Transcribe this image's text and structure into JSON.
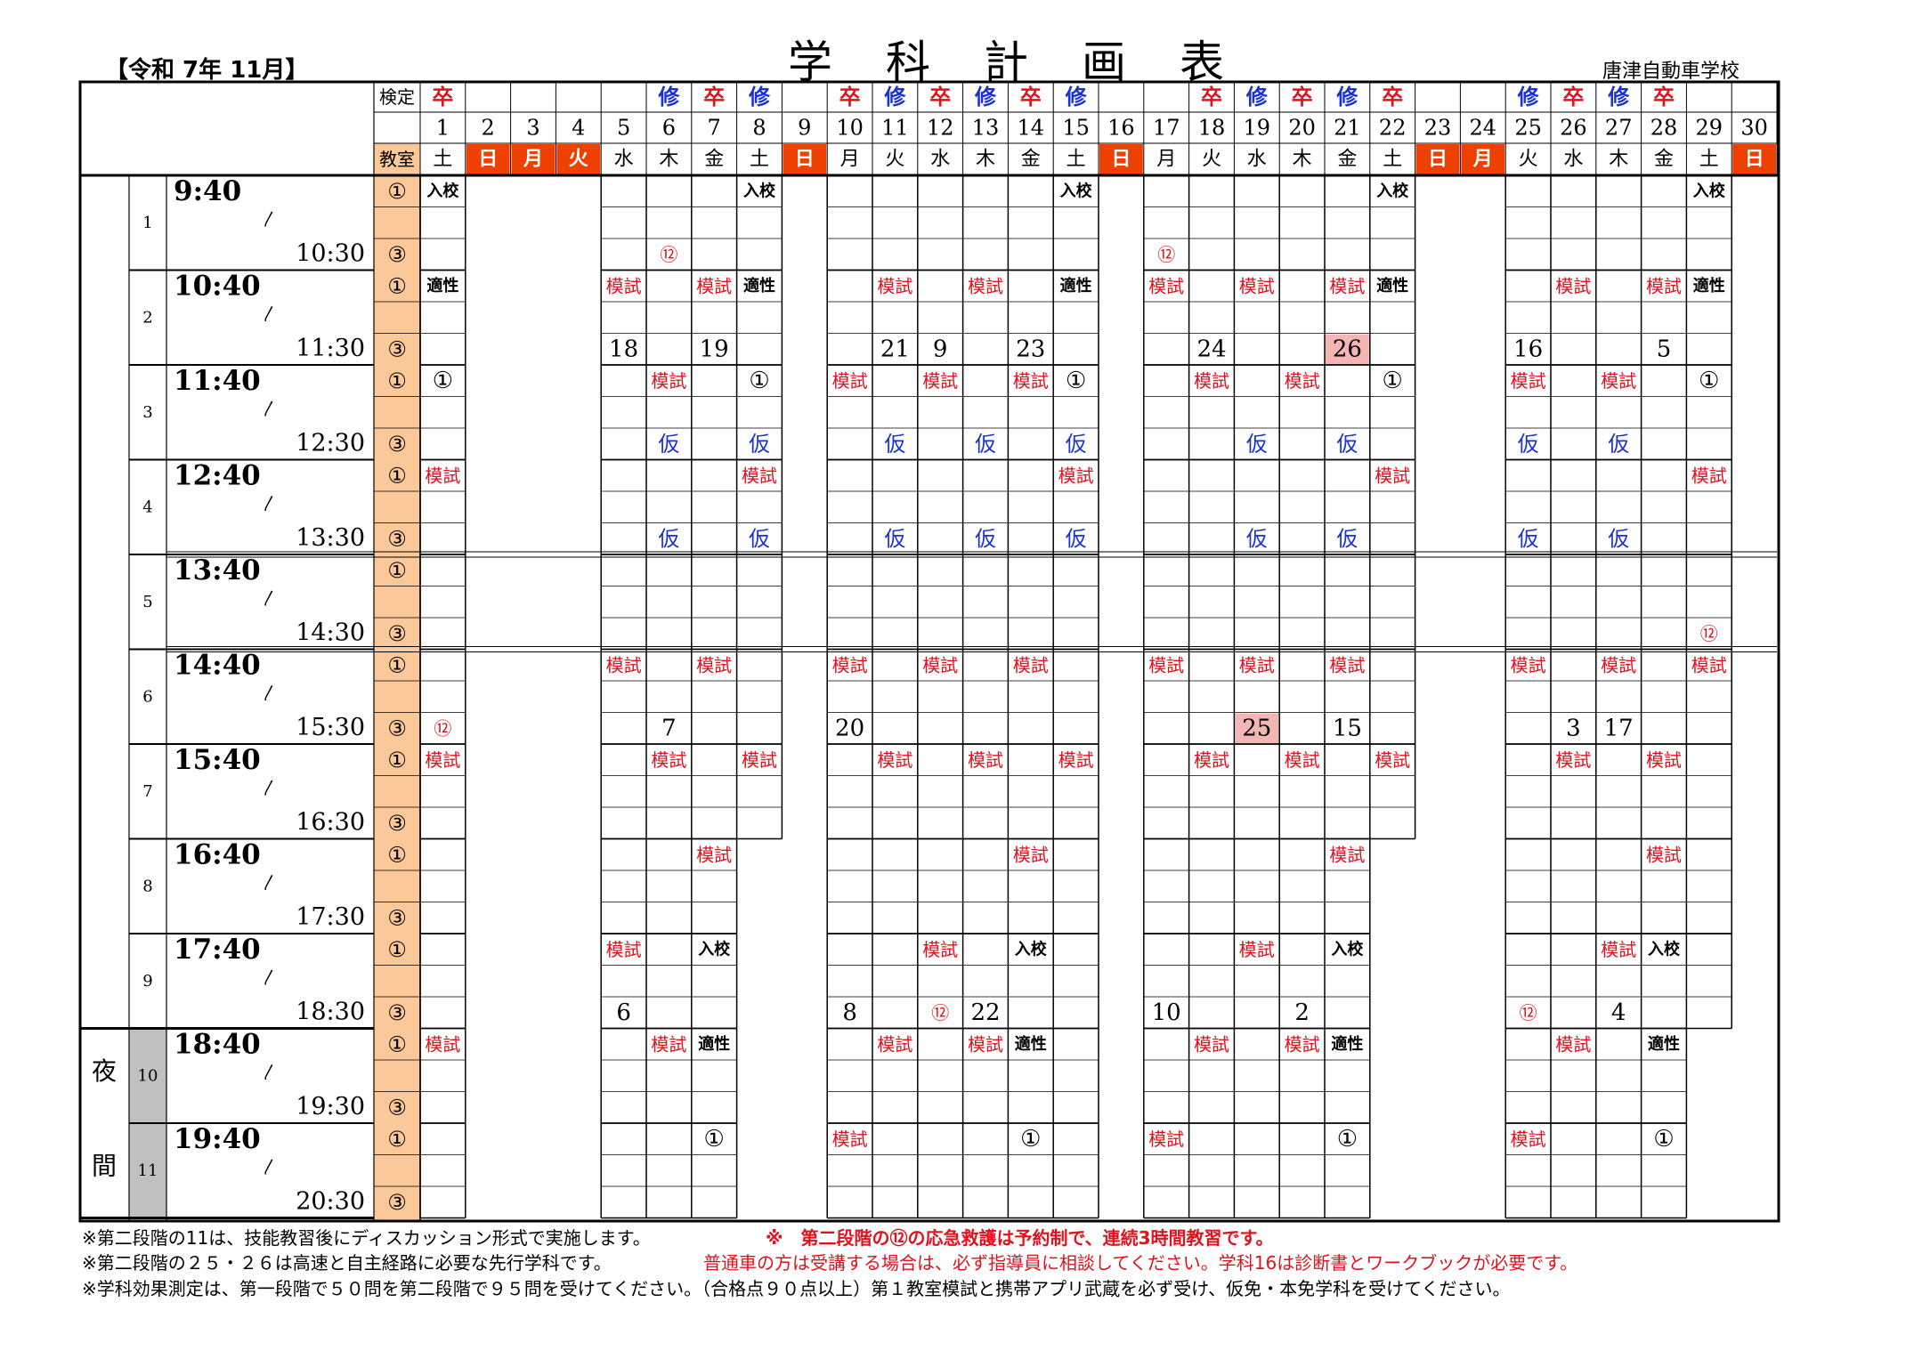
{
  "header": {
    "era": "【令和 7年 11月】",
    "title": "学科計画表",
    "school": "唐津自動車学校"
  },
  "labels": {
    "kentei": "検定",
    "kyoushitsu": "教室",
    "night": [
      "夜",
      "間"
    ],
    "room1": "①",
    "room3": "③",
    "wave": "〳"
  },
  "days": [
    {
      "d": "1",
      "w": "土",
      "m": "卒",
      "hol": false,
      "closed": false
    },
    {
      "d": "2",
      "w": "日",
      "m": "",
      "hol": true,
      "closed": true
    },
    {
      "d": "3",
      "w": "月",
      "m": "",
      "hol": true,
      "closed": true
    },
    {
      "d": "4",
      "w": "火",
      "m": "",
      "hol": true,
      "closed": true
    },
    {
      "d": "5",
      "w": "水",
      "m": "",
      "hol": false,
      "closed": false
    },
    {
      "d": "6",
      "w": "木",
      "m": "修",
      "hol": false,
      "closed": false
    },
    {
      "d": "7",
      "w": "金",
      "m": "卒",
      "hol": false,
      "closed": false
    },
    {
      "d": "8",
      "w": "土",
      "m": "修",
      "hol": false,
      "closed": false
    },
    {
      "d": "9",
      "w": "日",
      "m": "",
      "hol": true,
      "closed": true
    },
    {
      "d": "10",
      "w": "月",
      "m": "卒",
      "hol": false,
      "closed": false
    },
    {
      "d": "11",
      "w": "火",
      "m": "修",
      "hol": false,
      "closed": false
    },
    {
      "d": "12",
      "w": "水",
      "m": "卒",
      "hol": false,
      "closed": false
    },
    {
      "d": "13",
      "w": "木",
      "m": "修",
      "hol": false,
      "closed": false
    },
    {
      "d": "14",
      "w": "金",
      "m": "卒",
      "hol": false,
      "closed": false
    },
    {
      "d": "15",
      "w": "土",
      "m": "修",
      "hol": false,
      "closed": false
    },
    {
      "d": "16",
      "w": "日",
      "m": "",
      "hol": true,
      "closed": true
    },
    {
      "d": "17",
      "w": "月",
      "m": "",
      "hol": false,
      "closed": false
    },
    {
      "d": "18",
      "w": "火",
      "m": "卒",
      "hol": false,
      "closed": false
    },
    {
      "d": "19",
      "w": "水",
      "m": "修",
      "hol": false,
      "closed": false
    },
    {
      "d": "20",
      "w": "木",
      "m": "卒",
      "hol": false,
      "closed": false
    },
    {
      "d": "21",
      "w": "金",
      "m": "修",
      "hol": false,
      "closed": false
    },
    {
      "d": "22",
      "w": "土",
      "m": "卒",
      "hol": false,
      "closed": false
    },
    {
      "d": "23",
      "w": "日",
      "m": "",
      "hol": true,
      "closed": true
    },
    {
      "d": "24",
      "w": "月",
      "m": "",
      "hol": true,
      "closed": true
    },
    {
      "d": "25",
      "w": "火",
      "m": "修",
      "hol": false,
      "closed": false
    },
    {
      "d": "26",
      "w": "水",
      "m": "卒",
      "hol": false,
      "closed": false
    },
    {
      "d": "27",
      "w": "木",
      "m": "修",
      "hol": false,
      "closed": false
    },
    {
      "d": "28",
      "w": "金",
      "m": "卒",
      "hol": false,
      "closed": false
    },
    {
      "d": "29",
      "w": "土",
      "m": "",
      "hol": false,
      "closed": false
    },
    {
      "d": "30",
      "w": "日",
      "m": "",
      "hol": true,
      "closed": true
    }
  ],
  "periods": [
    {
      "n": "1",
      "start": "9:40",
      "end": "10:30"
    },
    {
      "n": "2",
      "start": "10:40",
      "end": "11:30"
    },
    {
      "n": "3",
      "start": "11:40",
      "end": "12:30"
    },
    {
      "n": "4",
      "start": "12:40",
      "end": "13:30"
    },
    {
      "n": "5",
      "start": "13:40",
      "end": "14:30"
    },
    {
      "n": "6",
      "start": "14:40",
      "end": "15:30"
    },
    {
      "n": "7",
      "start": "15:40",
      "end": "16:30"
    },
    {
      "n": "8",
      "start": "16:40",
      "end": "17:30"
    },
    {
      "n": "9",
      "start": "17:40",
      "end": "18:30"
    },
    {
      "n": "10",
      "start": "18:40",
      "end": "19:30"
    },
    {
      "n": "11",
      "start": "19:40",
      "end": "20:30"
    }
  ],
  "closed_slots": [
    {
      "day": "8",
      "from_period": "8",
      "to_period": "11"
    },
    {
      "day": "22",
      "from_period": "8",
      "to_period": "11"
    },
    {
      "day": "29",
      "from_period": "10",
      "to_period": "11"
    }
  ],
  "entries": [
    {
      "d": "1",
      "p": "1",
      "r": "0",
      "t": "入校",
      "c": "k"
    },
    {
      "d": "8",
      "p": "1",
      "r": "0",
      "t": "入校",
      "c": "k"
    },
    {
      "d": "15",
      "p": "1",
      "r": "0",
      "t": "入校",
      "c": "k"
    },
    {
      "d": "22",
      "p": "1",
      "r": "0",
      "t": "入校",
      "c": "k"
    },
    {
      "d": "29",
      "p": "1",
      "r": "0",
      "t": "入校",
      "c": "k"
    },
    {
      "d": "6",
      "p": "1",
      "r": "2",
      "t": "⑫",
      "c": "r"
    },
    {
      "d": "17",
      "p": "1",
      "r": "2",
      "t": "⑫",
      "c": "r"
    },
    {
      "d": "1",
      "p": "2",
      "r": "0",
      "t": "適性",
      "c": "k"
    },
    {
      "d": "5",
      "p": "2",
      "r": "0",
      "t": "模試",
      "c": "r"
    },
    {
      "d": "7",
      "p": "2",
      "r": "0",
      "t": "模試",
      "c": "r"
    },
    {
      "d": "8",
      "p": "2",
      "r": "0",
      "t": "適性",
      "c": "k"
    },
    {
      "d": "11",
      "p": "2",
      "r": "0",
      "t": "模試",
      "c": "r"
    },
    {
      "d": "13",
      "p": "2",
      "r": "0",
      "t": "模試",
      "c": "r"
    },
    {
      "d": "15",
      "p": "2",
      "r": "0",
      "t": "適性",
      "c": "k"
    },
    {
      "d": "17",
      "p": "2",
      "r": "0",
      "t": "模試",
      "c": "r"
    },
    {
      "d": "19",
      "p": "2",
      "r": "0",
      "t": "模試",
      "c": "r"
    },
    {
      "d": "21",
      "p": "2",
      "r": "0",
      "t": "模試",
      "c": "r"
    },
    {
      "d": "22",
      "p": "2",
      "r": "0",
      "t": "適性",
      "c": "k"
    },
    {
      "d": "26",
      "p": "2",
      "r": "0",
      "t": "模試",
      "c": "r"
    },
    {
      "d": "28",
      "p": "2",
      "r": "0",
      "t": "模試",
      "c": "r"
    },
    {
      "d": "29",
      "p": "2",
      "r": "0",
      "t": "適性",
      "c": "k"
    },
    {
      "d": "5",
      "p": "2",
      "r": "2",
      "t": "18",
      "c": "n"
    },
    {
      "d": "7",
      "p": "2",
      "r": "2",
      "t": "19",
      "c": "n"
    },
    {
      "d": "11",
      "p": "2",
      "r": "2",
      "t": "21",
      "c": "n"
    },
    {
      "d": "12",
      "p": "2",
      "r": "2",
      "t": "9",
      "c": "n"
    },
    {
      "d": "14",
      "p": "2",
      "r": "2",
      "t": "23",
      "c": "n"
    },
    {
      "d": "18",
      "p": "2",
      "r": "2",
      "t": "24",
      "c": "n"
    },
    {
      "d": "21",
      "p": "2",
      "r": "2",
      "t": "26",
      "c": "n",
      "bg": "#f4b5b5"
    },
    {
      "d": "25",
      "p": "2",
      "r": "2",
      "t": "16",
      "c": "n"
    },
    {
      "d": "28",
      "p": "2",
      "r": "2",
      "t": "5",
      "c": "n"
    },
    {
      "d": "1",
      "p": "3",
      "r": "0",
      "t": "①",
      "c": "n"
    },
    {
      "d": "6",
      "p": "3",
      "r": "0",
      "t": "模試",
      "c": "r"
    },
    {
      "d": "8",
      "p": "3",
      "r": "0",
      "t": "①",
      "c": "n"
    },
    {
      "d": "10",
      "p": "3",
      "r": "0",
      "t": "模試",
      "c": "r"
    },
    {
      "d": "12",
      "p": "3",
      "r": "0",
      "t": "模試",
      "c": "r"
    },
    {
      "d": "14",
      "p": "3",
      "r": "0",
      "t": "模試",
      "c": "r"
    },
    {
      "d": "15",
      "p": "3",
      "r": "0",
      "t": "①",
      "c": "n"
    },
    {
      "d": "18",
      "p": "3",
      "r": "0",
      "t": "模試",
      "c": "r"
    },
    {
      "d": "20",
      "p": "3",
      "r": "0",
      "t": "模試",
      "c": "r"
    },
    {
      "d": "22",
      "p": "3",
      "r": "0",
      "t": "①",
      "c": "n"
    },
    {
      "d": "25",
      "p": "3",
      "r": "0",
      "t": "模試",
      "c": "r"
    },
    {
      "d": "27",
      "p": "3",
      "r": "0",
      "t": "模試",
      "c": "r"
    },
    {
      "d": "29",
      "p": "3",
      "r": "0",
      "t": "①",
      "c": "n"
    },
    {
      "d": "6",
      "p": "3",
      "r": "2",
      "t": "仮",
      "c": "b"
    },
    {
      "d": "8",
      "p": "3",
      "r": "2",
      "t": "仮",
      "c": "b"
    },
    {
      "d": "11",
      "p": "3",
      "r": "2",
      "t": "仮",
      "c": "b"
    },
    {
      "d": "13",
      "p": "3",
      "r": "2",
      "t": "仮",
      "c": "b"
    },
    {
      "d": "15",
      "p": "3",
      "r": "2",
      "t": "仮",
      "c": "b"
    },
    {
      "d": "19",
      "p": "3",
      "r": "2",
      "t": "仮",
      "c": "b"
    },
    {
      "d": "21",
      "p": "3",
      "r": "2",
      "t": "仮",
      "c": "b"
    },
    {
      "d": "25",
      "p": "3",
      "r": "2",
      "t": "仮",
      "c": "b"
    },
    {
      "d": "27",
      "p": "3",
      "r": "2",
      "t": "仮",
      "c": "b"
    },
    {
      "d": "1",
      "p": "4",
      "r": "0",
      "t": "模試",
      "c": "r"
    },
    {
      "d": "8",
      "p": "4",
      "r": "0",
      "t": "模試",
      "c": "r"
    },
    {
      "d": "15",
      "p": "4",
      "r": "0",
      "t": "模試",
      "c": "r"
    },
    {
      "d": "22",
      "p": "4",
      "r": "0",
      "t": "模試",
      "c": "r"
    },
    {
      "d": "29",
      "p": "4",
      "r": "0",
      "t": "模試",
      "c": "r"
    },
    {
      "d": "6",
      "p": "4",
      "r": "2",
      "t": "仮",
      "c": "b"
    },
    {
      "d": "8",
      "p": "4",
      "r": "2",
      "t": "仮",
      "c": "b"
    },
    {
      "d": "11",
      "p": "4",
      "r": "2",
      "t": "仮",
      "c": "b"
    },
    {
      "d": "13",
      "p": "4",
      "r": "2",
      "t": "仮",
      "c": "b"
    },
    {
      "d": "15",
      "p": "4",
      "r": "2",
      "t": "仮",
      "c": "b"
    },
    {
      "d": "19",
      "p": "4",
      "r": "2",
      "t": "仮",
      "c": "b"
    },
    {
      "d": "21",
      "p": "4",
      "r": "2",
      "t": "仮",
      "c": "b"
    },
    {
      "d": "25",
      "p": "4",
      "r": "2",
      "t": "仮",
      "c": "b"
    },
    {
      "d": "27",
      "p": "4",
      "r": "2",
      "t": "仮",
      "c": "b"
    },
    {
      "d": "29",
      "p": "5",
      "r": "2",
      "t": "⑫",
      "c": "r"
    },
    {
      "d": "5",
      "p": "6",
      "r": "0",
      "t": "模試",
      "c": "r"
    },
    {
      "d": "7",
      "p": "6",
      "r": "0",
      "t": "模試",
      "c": "r"
    },
    {
      "d": "10",
      "p": "6",
      "r": "0",
      "t": "模試",
      "c": "r"
    },
    {
      "d": "12",
      "p": "6",
      "r": "0",
      "t": "模試",
      "c": "r"
    },
    {
      "d": "14",
      "p": "6",
      "r": "0",
      "t": "模試",
      "c": "r"
    },
    {
      "d": "17",
      "p": "6",
      "r": "0",
      "t": "模試",
      "c": "r"
    },
    {
      "d": "19",
      "p": "6",
      "r": "0",
      "t": "模試",
      "c": "r"
    },
    {
      "d": "21",
      "p": "6",
      "r": "0",
      "t": "模試",
      "c": "r"
    },
    {
      "d": "25",
      "p": "6",
      "r": "0",
      "t": "模試",
      "c": "r"
    },
    {
      "d": "27",
      "p": "6",
      "r": "0",
      "t": "模試",
      "c": "r"
    },
    {
      "d": "29",
      "p": "6",
      "r": "0",
      "t": "模試",
      "c": "r"
    },
    {
      "d": "1",
      "p": "6",
      "r": "2",
      "t": "⑫",
      "c": "r"
    },
    {
      "d": "6",
      "p": "6",
      "r": "2",
      "t": "7",
      "c": "n"
    },
    {
      "d": "10",
      "p": "6",
      "r": "2",
      "t": "20",
      "c": "n"
    },
    {
      "d": "19",
      "p": "6",
      "r": "2",
      "t": "25",
      "c": "n",
      "bg": "#f4b5b5"
    },
    {
      "d": "21",
      "p": "6",
      "r": "2",
      "t": "15",
      "c": "n"
    },
    {
      "d": "26",
      "p": "6",
      "r": "2",
      "t": "3",
      "c": "n"
    },
    {
      "d": "27",
      "p": "6",
      "r": "2",
      "t": "17",
      "c": "n"
    },
    {
      "d": "1",
      "p": "7",
      "r": "0",
      "t": "模試",
      "c": "r"
    },
    {
      "d": "6",
      "p": "7",
      "r": "0",
      "t": "模試",
      "c": "r"
    },
    {
      "d": "8",
      "p": "7",
      "r": "0",
      "t": "模試",
      "c": "r"
    },
    {
      "d": "11",
      "p": "7",
      "r": "0",
      "t": "模試",
      "c": "r"
    },
    {
      "d": "13",
      "p": "7",
      "r": "0",
      "t": "模試",
      "c": "r"
    },
    {
      "d": "15",
      "p": "7",
      "r": "0",
      "t": "模試",
      "c": "r"
    },
    {
      "d": "18",
      "p": "7",
      "r": "0",
      "t": "模試",
      "c": "r"
    },
    {
      "d": "20",
      "p": "7",
      "r": "0",
      "t": "模試",
      "c": "r"
    },
    {
      "d": "22",
      "p": "7",
      "r": "0",
      "t": "模試",
      "c": "r"
    },
    {
      "d": "26",
      "p": "7",
      "r": "0",
      "t": "模試",
      "c": "r"
    },
    {
      "d": "28",
      "p": "7",
      "r": "0",
      "t": "模試",
      "c": "r"
    },
    {
      "d": "7",
      "p": "8",
      "r": "0",
      "t": "模試",
      "c": "r"
    },
    {
      "d": "14",
      "p": "8",
      "r": "0",
      "t": "模試",
      "c": "r"
    },
    {
      "d": "21",
      "p": "8",
      "r": "0",
      "t": "模試",
      "c": "r"
    },
    {
      "d": "28",
      "p": "8",
      "r": "0",
      "t": "模試",
      "c": "r"
    },
    {
      "d": "5",
      "p": "9",
      "r": "0",
      "t": "模試",
      "c": "r"
    },
    {
      "d": "7",
      "p": "9",
      "r": "0",
      "t": "入校",
      "c": "k"
    },
    {
      "d": "12",
      "p": "9",
      "r": "0",
      "t": "模試",
      "c": "r"
    },
    {
      "d": "14",
      "p": "9",
      "r": "0",
      "t": "入校",
      "c": "k"
    },
    {
      "d": "19",
      "p": "9",
      "r": "0",
      "t": "模試",
      "c": "r"
    },
    {
      "d": "21",
      "p": "9",
      "r": "0",
      "t": "入校",
      "c": "k"
    },
    {
      "d": "27",
      "p": "9",
      "r": "0",
      "t": "模試",
      "c": "r"
    },
    {
      "d": "28",
      "p": "9",
      "r": "0",
      "t": "入校",
      "c": "k"
    },
    {
      "d": "5",
      "p": "9",
      "r": "2",
      "t": "6",
      "c": "n"
    },
    {
      "d": "10",
      "p": "9",
      "r": "2",
      "t": "8",
      "c": "n"
    },
    {
      "d": "12",
      "p": "9",
      "r": "2",
      "t": "⑫",
      "c": "r"
    },
    {
      "d": "13",
      "p": "9",
      "r": "2",
      "t": "22",
      "c": "n"
    },
    {
      "d": "17",
      "p": "9",
      "r": "2",
      "t": "10",
      "c": "n"
    },
    {
      "d": "20",
      "p": "9",
      "r": "2",
      "t": "2",
      "c": "n"
    },
    {
      "d": "25",
      "p": "9",
      "r": "2",
      "t": "⑫",
      "c": "r"
    },
    {
      "d": "27",
      "p": "9",
      "r": "2",
      "t": "4",
      "c": "n"
    },
    {
      "d": "1",
      "p": "10",
      "r": "0",
      "t": "模試",
      "c": "r"
    },
    {
      "d": "6",
      "p": "10",
      "r": "0",
      "t": "模試",
      "c": "r"
    },
    {
      "d": "7",
      "p": "10",
      "r": "0",
      "t": "適性",
      "c": "k"
    },
    {
      "d": "11",
      "p": "10",
      "r": "0",
      "t": "模試",
      "c": "r"
    },
    {
      "d": "13",
      "p": "10",
      "r": "0",
      "t": "模試",
      "c": "r"
    },
    {
      "d": "14",
      "p": "10",
      "r": "0",
      "t": "適性",
      "c": "k"
    },
    {
      "d": "18",
      "p": "10",
      "r": "0",
      "t": "模試",
      "c": "r"
    },
    {
      "d": "20",
      "p": "10",
      "r": "0",
      "t": "模試",
      "c": "r"
    },
    {
      "d": "21",
      "p": "10",
      "r": "0",
      "t": "適性",
      "c": "k"
    },
    {
      "d": "26",
      "p": "10",
      "r": "0",
      "t": "模試",
      "c": "r"
    },
    {
      "d": "28",
      "p": "10",
      "r": "0",
      "t": "適性",
      "c": "k"
    },
    {
      "d": "7",
      "p": "11",
      "r": "0",
      "t": "①",
      "c": "n"
    },
    {
      "d": "10",
      "p": "11",
      "r": "0",
      "t": "模試",
      "c": "r"
    },
    {
      "d": "14",
      "p": "11",
      "r": "0",
      "t": "①",
      "c": "n"
    },
    {
      "d": "17",
      "p": "11",
      "r": "0",
      "t": "模試",
      "c": "r"
    },
    {
      "d": "21",
      "p": "11",
      "r": "0",
      "t": "①",
      "c": "n"
    },
    {
      "d": "25",
      "p": "11",
      "r": "0",
      "t": "模試",
      "c": "r"
    },
    {
      "d": "28",
      "p": "11",
      "r": "0",
      "t": "①",
      "c": "n"
    }
  ],
  "notes": {
    "line1a": "※第二段階の11は、技能教習後にディスカッション形式で実施します。",
    "line1b": "※　第二段階の⑫の応急救護は予約制で、連続3時間教習です。",
    "line2a": "※第二段階の２５・２６は高速と自主経路に必要な先行学科です。",
    "line2b": "普通車の方は受講する場合は、必ず指導員に相談してください。学科16は診断書とワークブックが必要です。",
    "line3": "※学科効果測定は、第一段階で５０問を第二段階で９５問を受けてください。（合格点９０点以上）第１教室模試と携帯アプリ武蔵を必ず受け、仮免・本免学科を受けてください。"
  },
  "colors": {
    "red": "#e0121e",
    "blue": "#1a33d0",
    "holiday_bg": "#ee4000",
    "room_bg": "#fbc999",
    "night_bg": "#c0c0c0",
    "highlight": "#f4b5b5"
  }
}
